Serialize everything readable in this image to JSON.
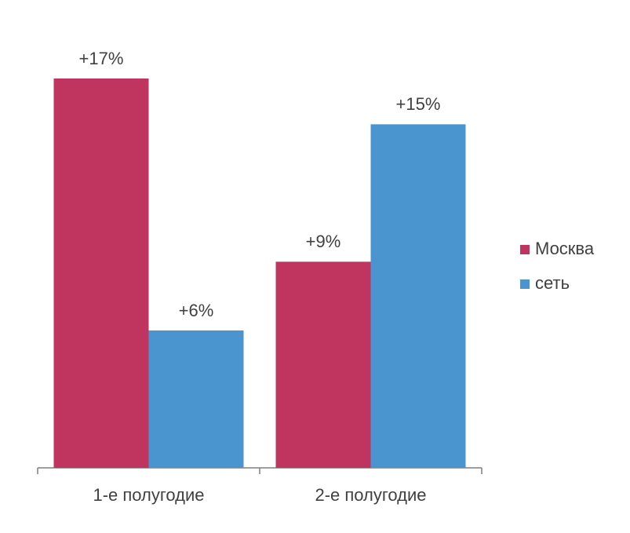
{
  "chart_data": {
    "type": "bar",
    "categories": [
      "1-е полугодие",
      "2-е полугодие"
    ],
    "series": [
      {
        "name": "Москва",
        "color": "#c0355f",
        "values": [
          17,
          9
        ],
        "value_labels": [
          "+17%",
          "+9%"
        ]
      },
      {
        "name": "сеть",
        "color": "#4a95d0",
        "values": [
          6,
          15
        ],
        "value_labels": [
          "+6%",
          "+15%"
        ]
      }
    ],
    "legend": "right"
  }
}
